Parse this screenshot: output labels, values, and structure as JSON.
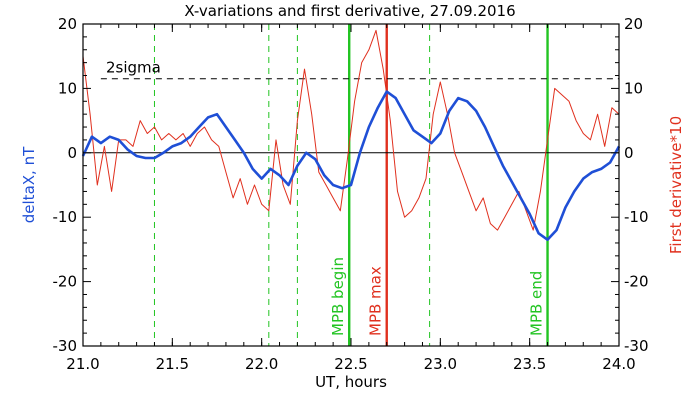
{
  "chart_data": {
    "type": "line",
    "title": "X-variations and first derivative, 27.09.2016",
    "xlabel": "UT, hours",
    "ylabel_left": "deltaX, nT",
    "ylabel_right": "First derivative*10",
    "xlim": [
      21.0,
      24.0
    ],
    "ylim": [
      -30,
      20
    ],
    "xticks": [
      "21.0",
      "21.5",
      "22.0",
      "22.5",
      "23.0",
      "23.5",
      "24.0"
    ],
    "yticks_left": [
      "20",
      "10",
      "0",
      "-10",
      "-20",
      "-30"
    ],
    "yticks_right": [
      "20",
      "10",
      "0",
      "-10",
      "-20",
      "-30"
    ],
    "threshold": {
      "label": "2sigma",
      "value": 11.5,
      "style": "dashed",
      "color": "#000000"
    },
    "zero_line": 0,
    "series": [
      {
        "name": "deltaX, nT",
        "axis": "left",
        "color": "#1f4fd6",
        "x": [
          21.0,
          21.05,
          21.1,
          21.15,
          21.2,
          21.25,
          21.3,
          21.35,
          21.4,
          21.45,
          21.5,
          21.55,
          21.6,
          21.65,
          21.7,
          21.75,
          21.8,
          21.85,
          21.9,
          21.95,
          22.0,
          22.05,
          22.1,
          22.15,
          22.2,
          22.25,
          22.3,
          22.35,
          22.4,
          22.45,
          22.5,
          22.55,
          22.6,
          22.65,
          22.7,
          22.75,
          22.8,
          22.85,
          22.9,
          22.95,
          23.0,
          23.05,
          23.1,
          23.15,
          23.2,
          23.25,
          23.3,
          23.35,
          23.4,
          23.45,
          23.5,
          23.55,
          23.6,
          23.65,
          23.7,
          23.75,
          23.8,
          23.85,
          23.9,
          23.95,
          24.0
        ],
        "values": [
          -0.5,
          2.5,
          1.5,
          2.5,
          2.0,
          0.5,
          -0.5,
          -0.8,
          -0.8,
          0.0,
          1.0,
          1.5,
          2.5,
          4.0,
          5.5,
          6.0,
          4.0,
          2.0,
          0.0,
          -2.5,
          -4.0,
          -2.5,
          -3.5,
          -5.0,
          -2.0,
          0.0,
          -1.0,
          -3.5,
          -5.0,
          -5.5,
          -5.0,
          0.0,
          4.0,
          7.0,
          9.5,
          8.5,
          6.0,
          3.5,
          2.5,
          1.5,
          3.0,
          6.5,
          8.5,
          8.0,
          6.5,
          4.0,
          1.0,
          -2.0,
          -4.5,
          -7.0,
          -9.5,
          -12.5,
          -13.5,
          -12.0,
          -8.5,
          -6.0,
          -4.0,
          -3.0,
          -2.5,
          -1.5,
          1.0
        ]
      },
      {
        "name": "First derivative*10",
        "axis": "right",
        "color": "#e0301e",
        "x": [
          21.0,
          21.04,
          21.08,
          21.12,
          21.16,
          21.2,
          21.24,
          21.28,
          21.32,
          21.36,
          21.4,
          21.44,
          21.48,
          21.52,
          21.56,
          21.6,
          21.64,
          21.68,
          21.72,
          21.76,
          21.8,
          21.84,
          21.88,
          21.92,
          21.96,
          22.0,
          22.04,
          22.08,
          22.12,
          22.16,
          22.2,
          22.24,
          22.28,
          22.32,
          22.36,
          22.4,
          22.44,
          22.48,
          22.52,
          22.56,
          22.6,
          22.64,
          22.68,
          22.72,
          22.76,
          22.8,
          22.84,
          22.88,
          22.92,
          22.96,
          23.0,
          23.04,
          23.08,
          23.12,
          23.16,
          23.2,
          23.24,
          23.28,
          23.32,
          23.36,
          23.4,
          23.44,
          23.48,
          23.52,
          23.56,
          23.6,
          23.64,
          23.68,
          23.72,
          23.76,
          23.8,
          23.84,
          23.88,
          23.92,
          23.96,
          24.0
        ],
        "values": [
          15,
          6,
          -5,
          1,
          -6,
          2,
          2,
          1,
          5,
          3,
          4,
          2,
          3,
          2,
          3,
          1,
          3,
          4,
          2,
          1,
          -3,
          -7,
          -4,
          -8,
          -5,
          -8,
          -9,
          2,
          -5,
          -8,
          5,
          13,
          6,
          -3,
          -5,
          -7,
          -9,
          -1,
          8,
          14,
          16,
          19,
          13,
          5,
          -6,
          -10,
          -9,
          -7,
          -4,
          6,
          11,
          6,
          0,
          -3,
          -6,
          -9,
          -7,
          -11,
          -12,
          -10,
          -8,
          -6,
          -9,
          -12,
          -6,
          2,
          10,
          9,
          8,
          5,
          3,
          2,
          6,
          1,
          7,
          6
        ]
      }
    ],
    "vertical_lines": [
      {
        "x": 21.4,
        "style": "dashed",
        "color": "#22c422",
        "label": ""
      },
      {
        "x": 22.04,
        "style": "dashed",
        "color": "#22c422",
        "label": ""
      },
      {
        "x": 22.2,
        "style": "dashed",
        "color": "#22c422",
        "label": ""
      },
      {
        "x": 22.94,
        "style": "dashed",
        "color": "#22c422",
        "label": ""
      },
      {
        "x": 22.49,
        "style": "solid",
        "color": "#22c422",
        "label": "MPB begin"
      },
      {
        "x": 22.7,
        "style": "solid",
        "color": "#e0301e",
        "label": "MPB max"
      },
      {
        "x": 23.6,
        "style": "solid",
        "color": "#22c422",
        "label": "MPB end"
      }
    ]
  }
}
